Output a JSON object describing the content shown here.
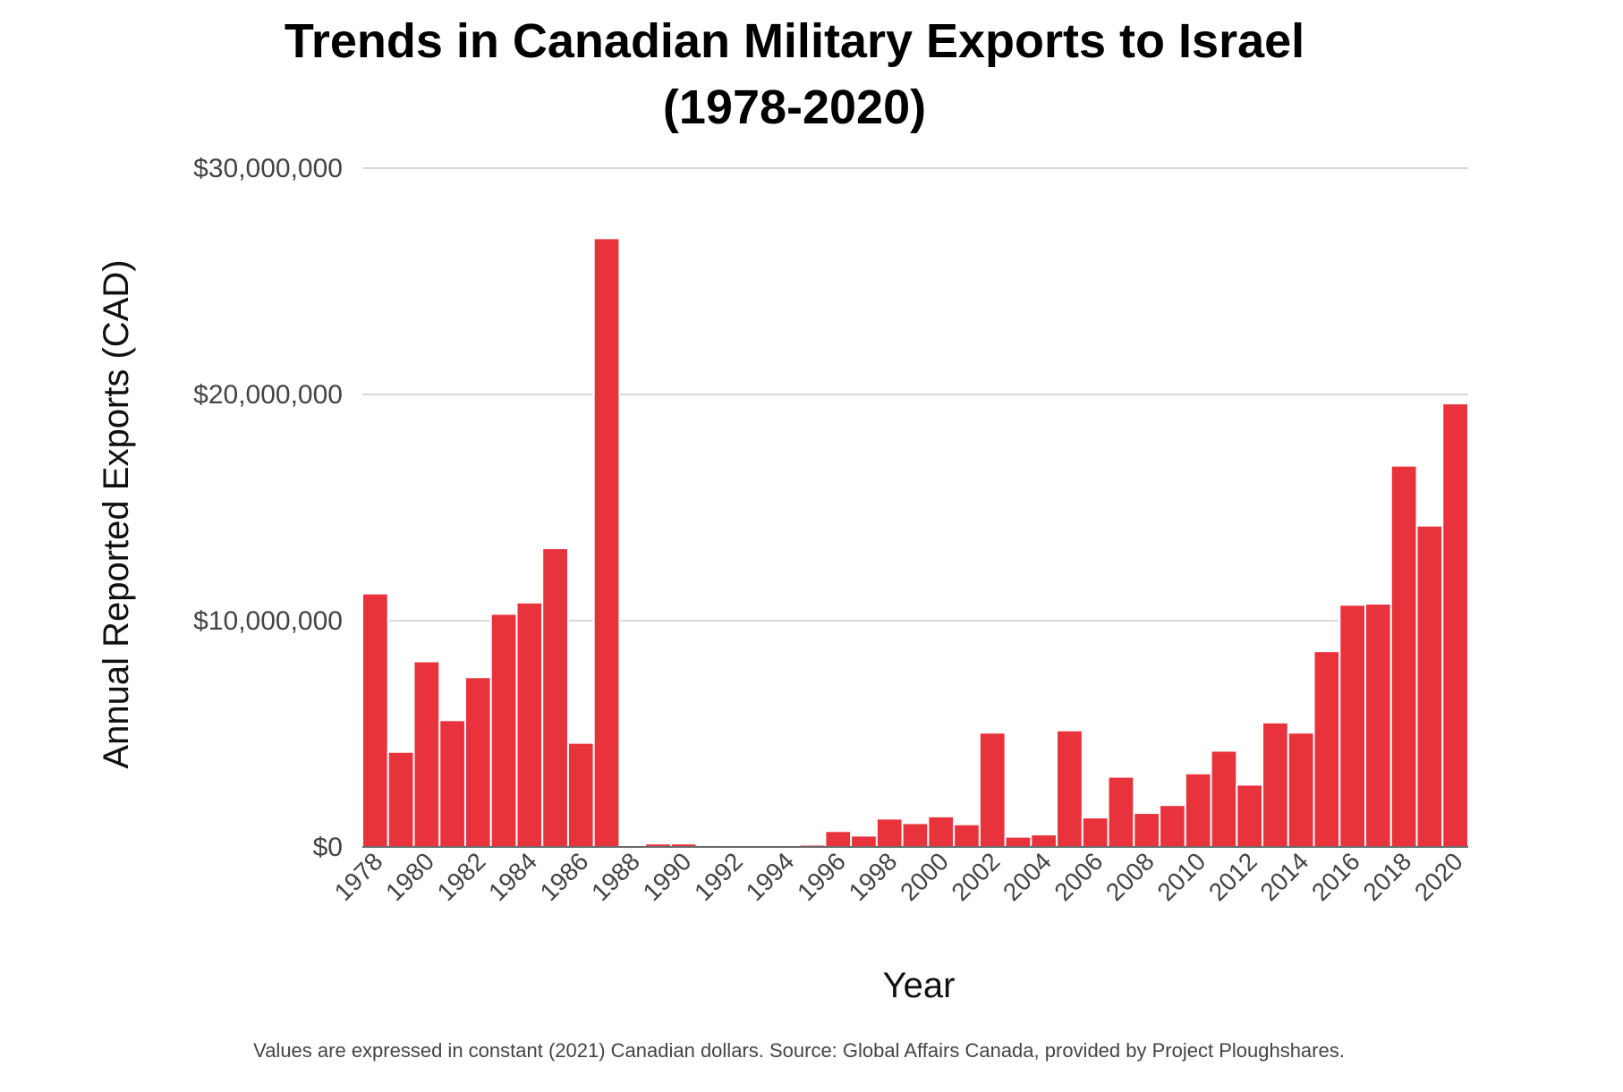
{
  "chart_data": {
    "type": "bar",
    "title": "Trends in Canadian Military Exports to Israel",
    "title_line2": "(1978-2020)",
    "xlabel": "Year",
    "ylabel": "Annual Reported Exports (CAD)",
    "footnote": "Values are expressed in constant (2021) Canadian dollars. Source: Global Affairs Canada, provided by Project Ploughshares.",
    "ylim": [
      0,
      30000000
    ],
    "yticks": [
      {
        "value": 0,
        "label": "$0"
      },
      {
        "value": 10000000,
        "label": "$10,000,000"
      },
      {
        "value": 20000000,
        "label": "$20,000,000"
      },
      {
        "value": 30000000,
        "label": "$30,000,000"
      }
    ],
    "grid": true,
    "bar_color": "#e8323c",
    "categories": [
      "1978",
      "1979",
      "1980",
      "1981",
      "1982",
      "1983",
      "1984",
      "1985",
      "1986",
      "1987",
      "1988",
      "1989",
      "1990",
      "1991",
      "1992",
      "1993",
      "1994",
      "1995",
      "1996",
      "1997",
      "1998",
      "1999",
      "2000",
      "2001",
      "2002",
      "2003",
      "2004",
      "2005",
      "2006",
      "2007",
      "2008",
      "2009",
      "2010",
      "2011",
      "2012",
      "2013",
      "2014",
      "2015",
      "2016",
      "2017",
      "2018",
      "2019",
      "2020"
    ],
    "xtick_labels": [
      "1978",
      "1980",
      "1982",
      "1984",
      "1986",
      "1988",
      "1990",
      "1992",
      "1994",
      "1996",
      "1998",
      "2000",
      "2002",
      "2004",
      "2006",
      "2008",
      "2010",
      "2012",
      "2014",
      "2016",
      "2018",
      "2020"
    ],
    "values": [
      11200000,
      4200000,
      8200000,
      5600000,
      7500000,
      10300000,
      10800000,
      13200000,
      4600000,
      26900000,
      50000,
      150000,
      150000,
      80000,
      20000,
      20000,
      20000,
      100000,
      700000,
      500000,
      1250000,
      1050000,
      1350000,
      1000000,
      5050000,
      450000,
      550000,
      5150000,
      1300000,
      3100000,
      1500000,
      1850000,
      3250000,
      4250000,
      2750000,
      5500000,
      5050000,
      8650000,
      10700000,
      10750000,
      16850000,
      14200000,
      19600000
    ]
  }
}
